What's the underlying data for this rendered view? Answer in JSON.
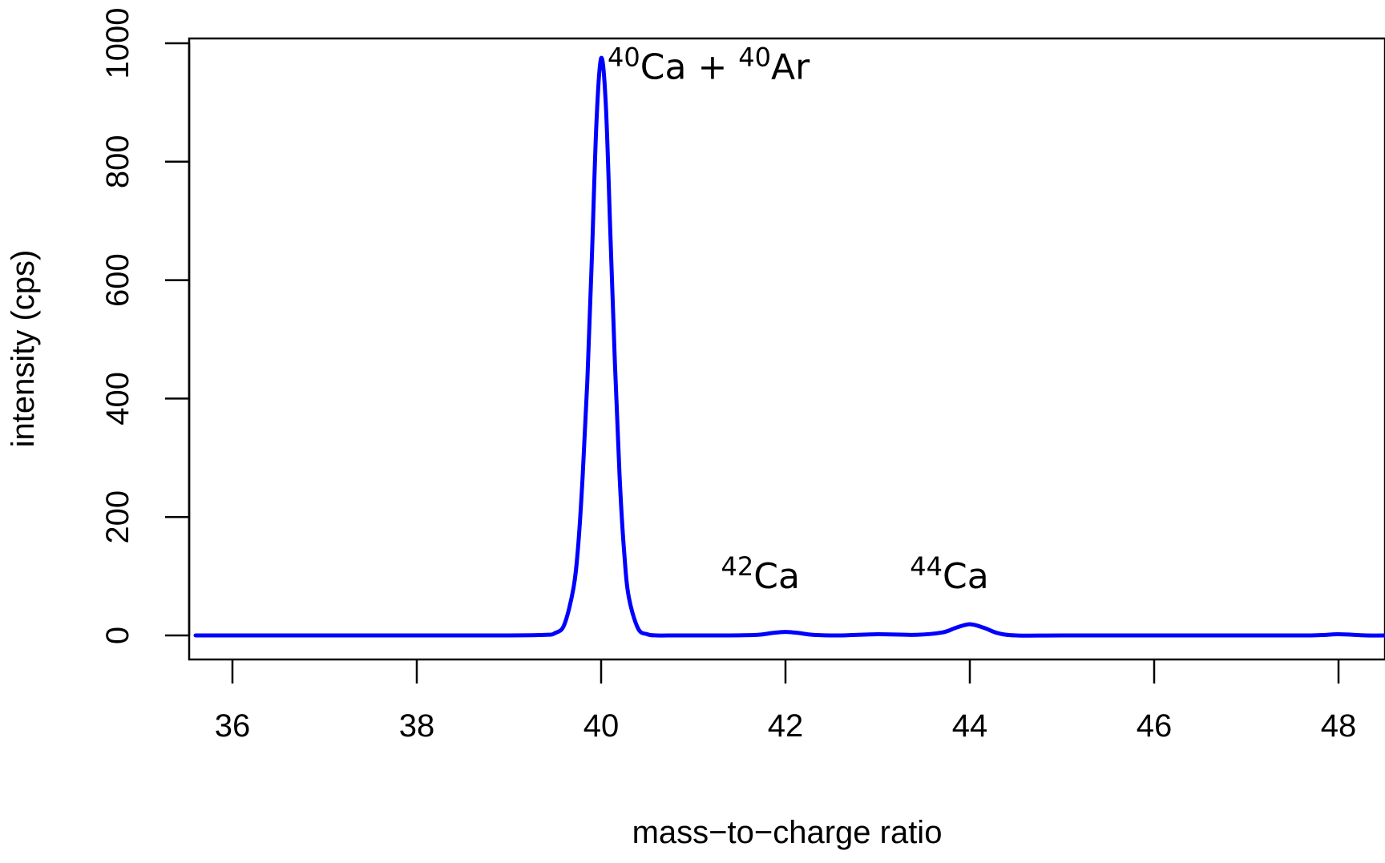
{
  "chart_data": {
    "type": "line",
    "title": "",
    "xlabel": "mass−to−charge ratio",
    "ylabel": "intensity (cps)",
    "xlim": [
      35.6,
      48.6
    ],
    "ylim": [
      -40,
      1000
    ],
    "x_ticks": [
      36,
      38,
      40,
      42,
      44,
      46,
      48
    ],
    "x_tick_labels": [
      "36",
      "38",
      "40",
      "42",
      "44",
      "46",
      "48"
    ],
    "y_ticks": [
      0,
      200,
      400,
      600,
      800,
      1000
    ],
    "y_tick_labels": [
      "0",
      "200",
      "400",
      "600",
      "800",
      "1000"
    ],
    "grid": false,
    "series": [
      {
        "color": "#0000ff",
        "x": [
          35.6,
          36,
          37,
          38,
          39,
          39.4,
          39.5,
          39.6,
          39.7,
          39.75,
          39.8,
          39.85,
          39.9,
          39.95,
          40.0,
          40.05,
          40.1,
          40.15,
          40.2,
          40.25,
          40.3,
          40.4,
          40.5,
          40.6,
          40.8,
          41,
          41.4,
          41.7,
          41.85,
          42.0,
          42.15,
          42.3,
          42.6,
          43.0,
          43.4,
          43.7,
          43.85,
          44.0,
          44.15,
          44.3,
          44.5,
          45,
          46,
          47,
          47.7,
          48.0,
          48.3,
          48.6
        ],
        "y": [
          0,
          0,
          0,
          0,
          0,
          1,
          4,
          18,
          80,
          150,
          270,
          430,
          640,
          870,
          975,
          900,
          680,
          460,
          270,
          140,
          65,
          12,
          2,
          0,
          0,
          0,
          0,
          1,
          4,
          6,
          4,
          1,
          0,
          2,
          1,
          5,
          13,
          19,
          13,
          4,
          0,
          0,
          0,
          0,
          0,
          2,
          0,
          0
        ]
      }
    ],
    "annotations": [
      {
        "x": 40.07,
        "y": 940,
        "sup": "40",
        "text": "Ca + ",
        "sup2": "40",
        "text2": "Ar"
      },
      {
        "x": 41.3,
        "y": 80,
        "sup": "42",
        "text": "Ca",
        "sup2": "",
        "text2": ""
      },
      {
        "x": 43.35,
        "y": 80,
        "sup": "44",
        "text": "Ca",
        "sup2": "",
        "text2": ""
      }
    ]
  }
}
